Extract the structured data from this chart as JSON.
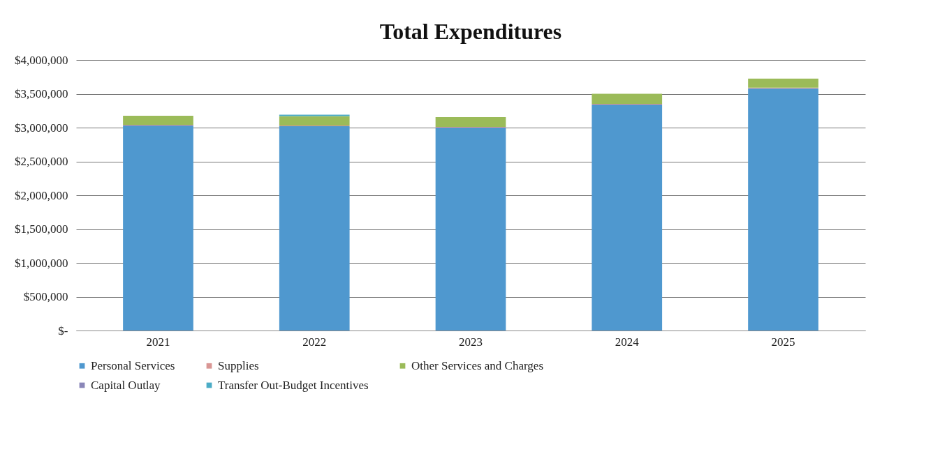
{
  "chart_data": {
    "type": "bar",
    "title": "Total Expenditures",
    "stacked": true,
    "categories": [
      "2021",
      "2022",
      "2023",
      "2024",
      "2025"
    ],
    "series": [
      {
        "name": "Personal Services",
        "color": "#4f98cf",
        "values": [
          3030000,
          3020000,
          3000000,
          3340000,
          3580000
        ]
      },
      {
        "name": "Supplies",
        "color": "#d99694",
        "values": [
          10000,
          10000,
          10000,
          10000,
          10000
        ]
      },
      {
        "name": "Other Services and Charges",
        "color": "#9bbb59",
        "values": [
          135000,
          140000,
          145000,
          150000,
          135000
        ]
      },
      {
        "name": "Capital Outlay",
        "color": "#8a86b8",
        "values": [
          0,
          0,
          0,
          0,
          0
        ]
      },
      {
        "name": "Transfer Out-Budget Incentives",
        "color": "#4bacc6",
        "values": [
          0,
          20000,
          0,
          0,
          0
        ]
      }
    ],
    "ylim": [
      0,
      4000000
    ],
    "yticks": [
      {
        "value": 0,
        "label": "$-"
      },
      {
        "value": 500000,
        "label": "$500,000"
      },
      {
        "value": 1000000,
        "label": "$1,000,000"
      },
      {
        "value": 1500000,
        "label": "$1,500,000"
      },
      {
        "value": 2000000,
        "label": "$2,000,000"
      },
      {
        "value": 2500000,
        "label": "$2,500,000"
      },
      {
        "value": 3000000,
        "label": "$3,000,000"
      },
      {
        "value": 3500000,
        "label": "$3,500,000"
      },
      {
        "value": 4000000,
        "label": "$4,000,000"
      }
    ],
    "grid": true,
    "legend": "bottom"
  }
}
